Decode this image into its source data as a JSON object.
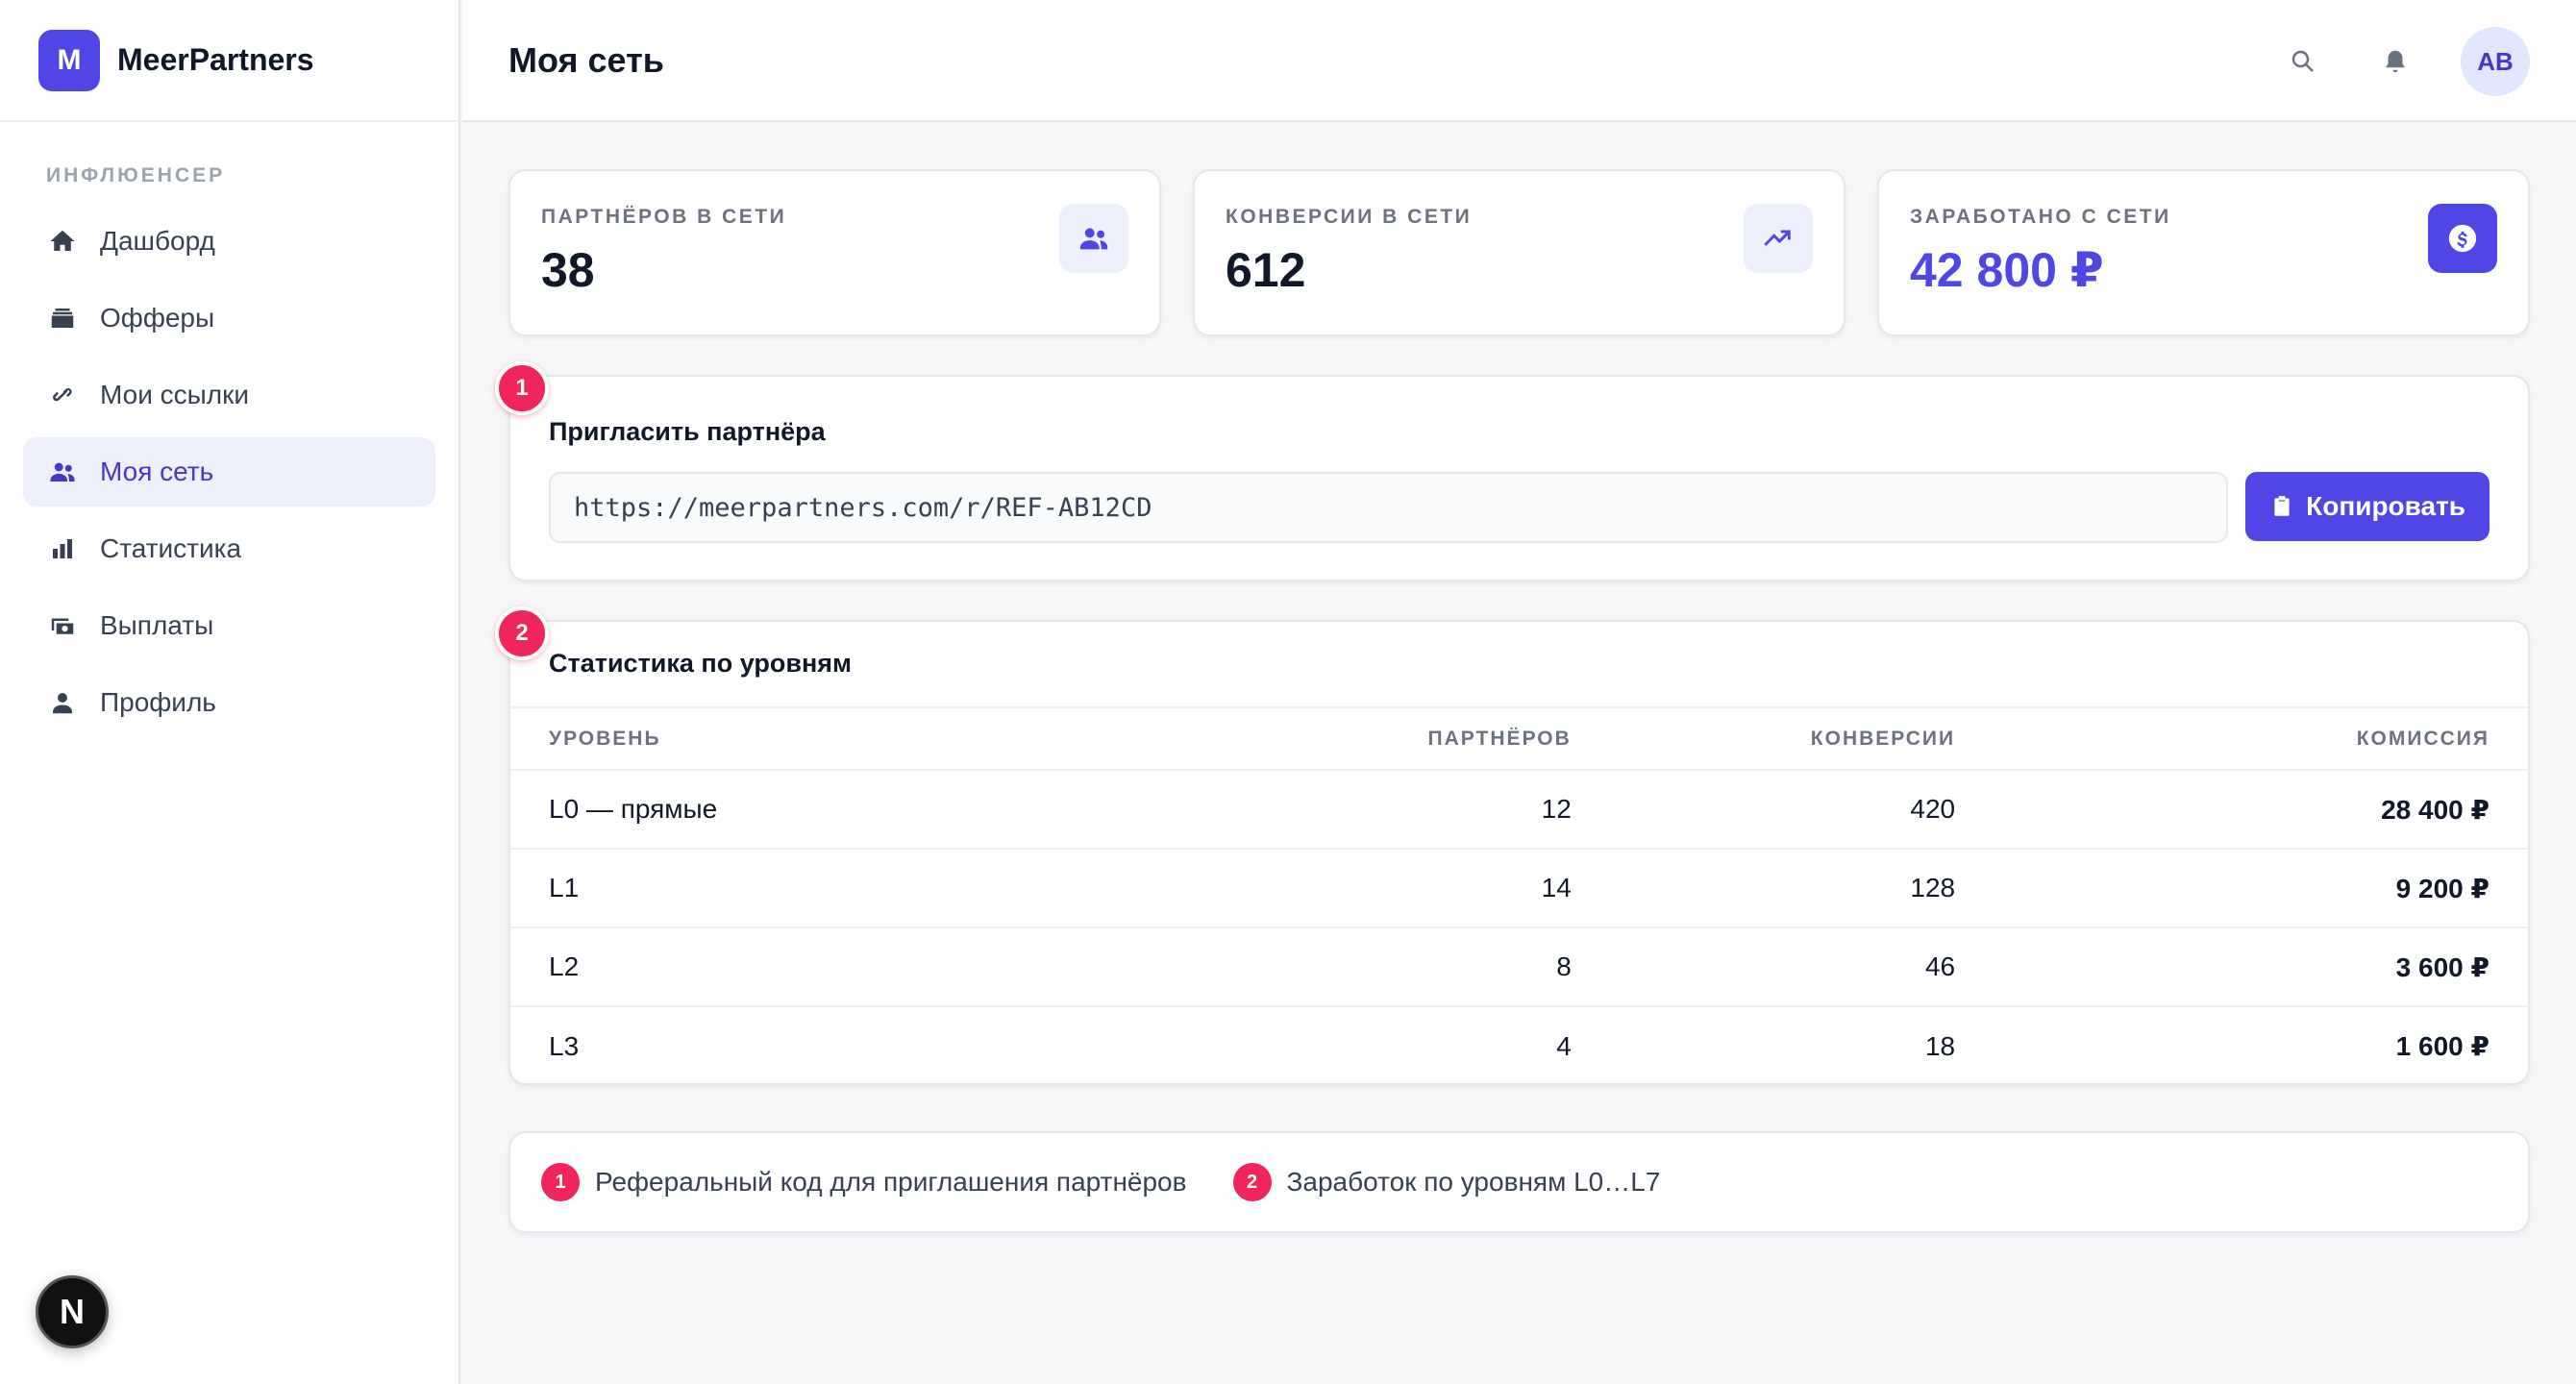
{
  "brand": {
    "logo_letter": "M",
    "name": "MeerPartners"
  },
  "sidebar": {
    "section_label": "ИНФЛЮЕНСЕР",
    "items": [
      {
        "label": "Дашборд",
        "icon": "home-icon",
        "active": false
      },
      {
        "label": "Офферы",
        "icon": "stack-icon",
        "active": false
      },
      {
        "label": "Мои ссылки",
        "icon": "link-icon",
        "active": false
      },
      {
        "label": "Моя сеть",
        "icon": "users-icon",
        "active": true
      },
      {
        "label": "Статистика",
        "icon": "bar-chart-icon",
        "active": false
      },
      {
        "label": "Выплаты",
        "icon": "wallet-icon",
        "active": false
      },
      {
        "label": "Профиль",
        "icon": "person-icon",
        "active": false
      }
    ],
    "framework_badge": "N"
  },
  "header": {
    "title": "Моя сеть",
    "avatar_initials": "AB"
  },
  "stats": [
    {
      "label": "ПАРТНЁРОВ В СЕТИ",
      "value": "38",
      "icon": "users-icon"
    },
    {
      "label": "КОНВЕРСИИ В СЕТИ",
      "value": "612",
      "icon": "trending-up-icon"
    },
    {
      "label": "ЗАРАБОТАНО С СЕТИ",
      "value": "42 800 ₽",
      "icon": "dollar-icon"
    }
  ],
  "invite": {
    "marker": "1",
    "title": "Пригласить партнёра",
    "referral_url": "https://meerpartners.com/r/REF-AB12CD",
    "copy_label": "Копировать"
  },
  "levels": {
    "marker": "2",
    "title": "Статистика по уровням",
    "columns": [
      "УРОВЕНЬ",
      "ПАРТНЁРОВ",
      "КОНВЕРСИИ",
      "КОМИССИЯ"
    ],
    "rows": [
      {
        "level": "L0 — прямые",
        "partners": "12",
        "conversions": "420",
        "commission": "28 400 ₽"
      },
      {
        "level": "L1",
        "partners": "14",
        "conversions": "128",
        "commission": "9 200 ₽"
      },
      {
        "level": "L2",
        "partners": "8",
        "conversions": "46",
        "commission": "3 600 ₽"
      },
      {
        "level": "L3",
        "partners": "4",
        "conversions": "18",
        "commission": "1 600 ₽"
      }
    ]
  },
  "legend": [
    {
      "num": "1",
      "text": "Реферальный код для приглашения партнёров"
    },
    {
      "num": "2",
      "text": "Заработок по уровням L0…L7"
    }
  ],
  "colors": {
    "accent": "#4f46e5",
    "marker": "#f0255b",
    "active_bg": "#eef0fd"
  }
}
